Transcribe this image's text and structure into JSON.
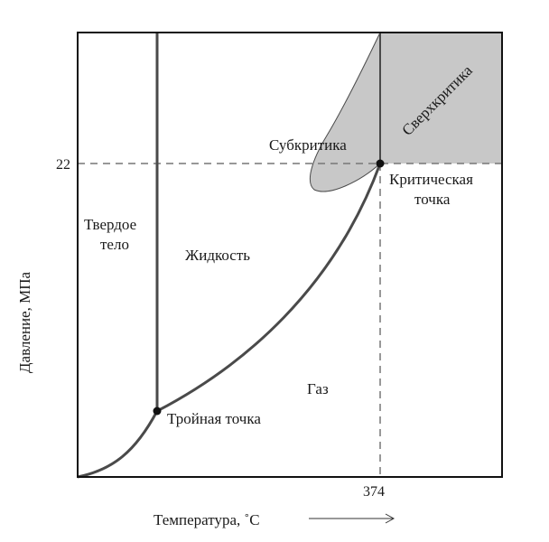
{
  "colors": {
    "frame": "#111111",
    "curve": "#4a4a4a",
    "dashed": "#777777",
    "region_fill": "#c8c8c8",
    "text": "#1a1a1a"
  },
  "axes": {
    "ylabel": "Давление, МПа",
    "xlabel": "Температура, ˚С",
    "x_arrow_icon": "right-arrow-icon",
    "ytick": "22",
    "xtick": "374"
  },
  "regions": {
    "solid_line1": "Твердое",
    "solid_line2": "тело",
    "liquid": "Жидкость",
    "gas": "Газ",
    "subcritical": "Субкритика",
    "supercritical": "Сверхкритика"
  },
  "points": {
    "critical_line1": "Критическая",
    "critical_line2": "точка",
    "triple": "Тройная точка"
  }
}
